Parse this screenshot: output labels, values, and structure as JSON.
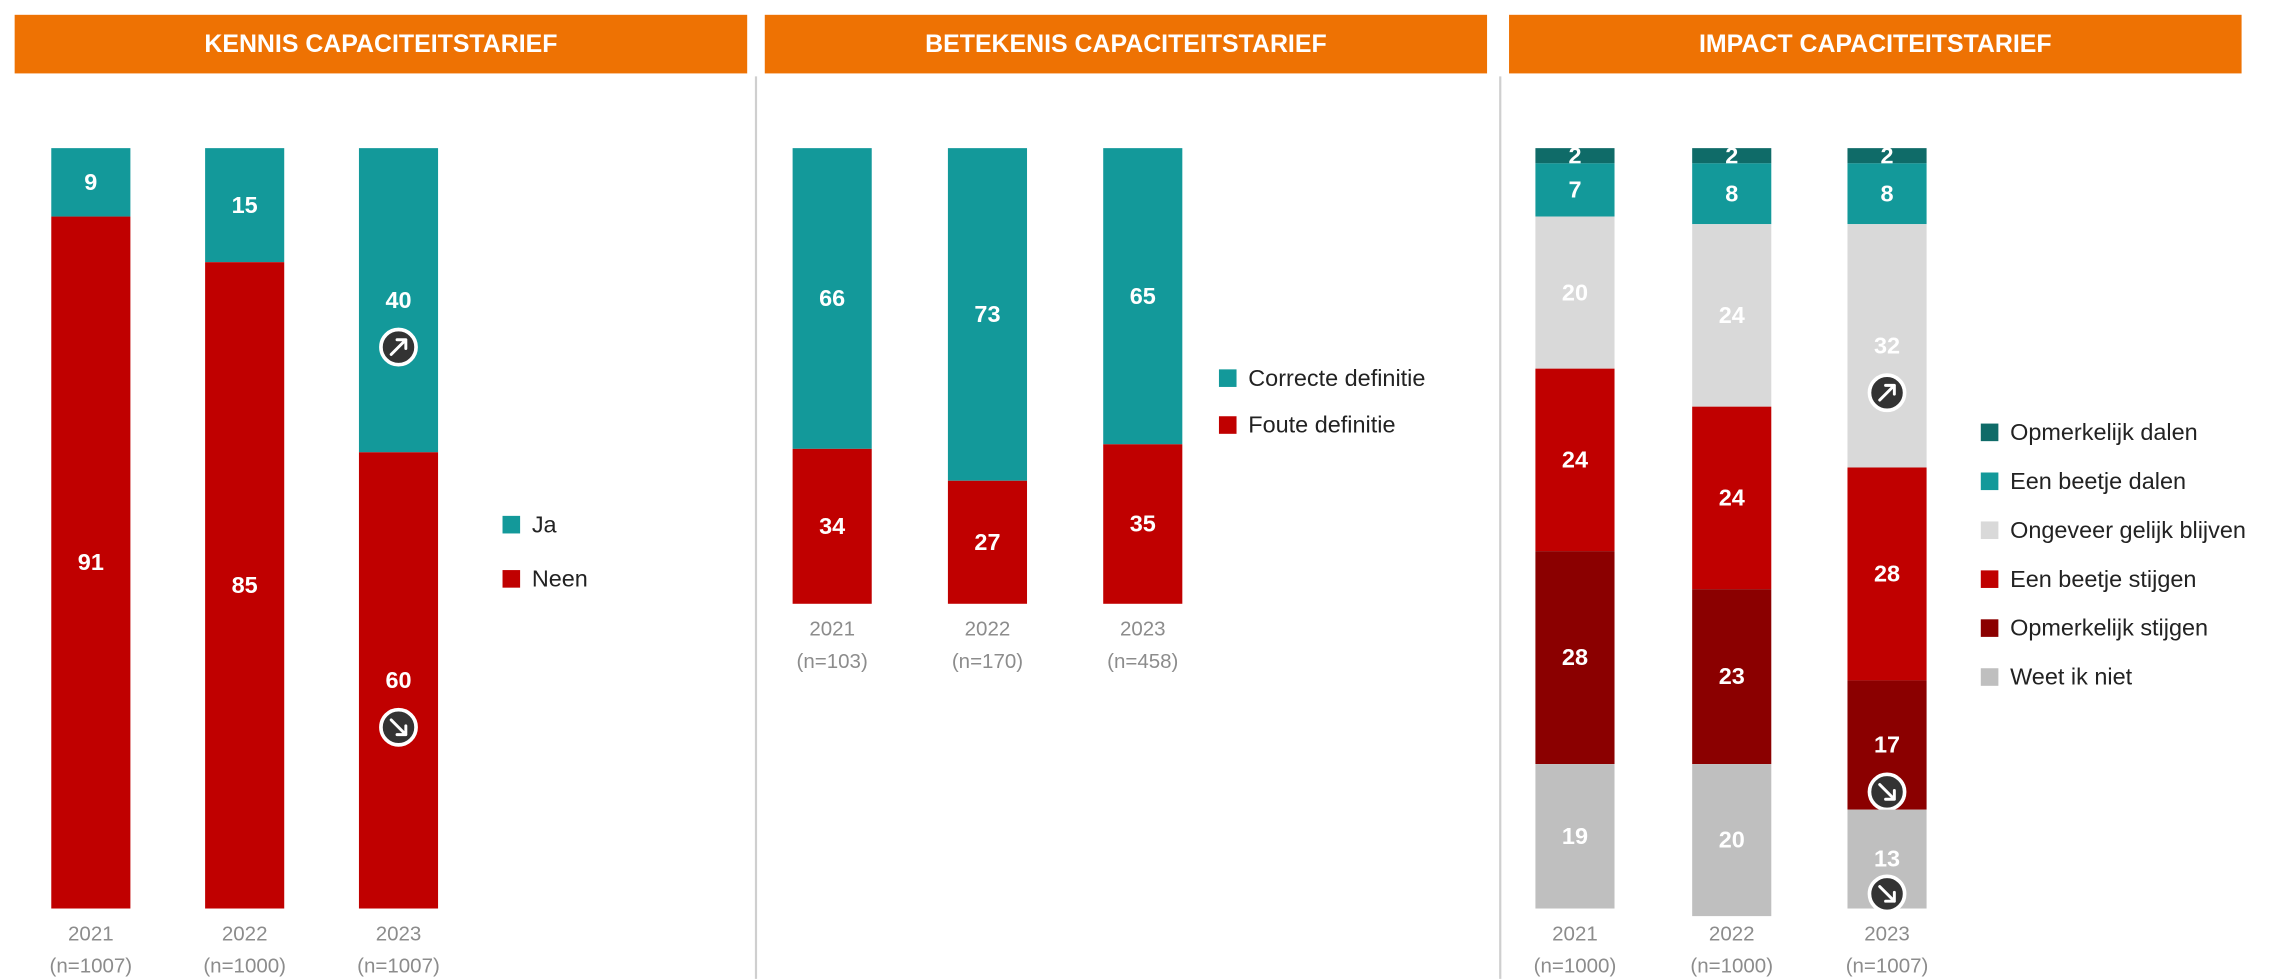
{
  "chart_data": [
    {
      "type": "stacked_bar",
      "title": "KENNIS CAPACITEITSTARIEF",
      "categories": [
        "2021",
        "2022",
        "2023"
      ],
      "n_labels": [
        "(n=1007)",
        "(n=1000)",
        "(n=1007)"
      ],
      "ylim": [
        0,
        100
      ],
      "legend": "right",
      "series": [
        {
          "name": "Ja",
          "color": "#13999a",
          "values": [
            9,
            15,
            40
          ],
          "trend": [
            null,
            null,
            "up"
          ]
        },
        {
          "name": "Neen",
          "color": "#c00000",
          "values": [
            91,
            85,
            60
          ],
          "trend": [
            null,
            null,
            "down"
          ]
        }
      ]
    },
    {
      "type": "stacked_bar",
      "title": "BETEKENIS CAPACITEITSTARIEF",
      "categories": [
        "2021",
        "2022",
        "2023"
      ],
      "n_labels": [
        "(n=103)",
        "(n=170)",
        "(n=458)"
      ],
      "ylim": [
        0,
        100
      ],
      "legend": "right",
      "series": [
        {
          "name": "Correcte definitie",
          "color": "#13999a",
          "values": [
            66,
            73,
            65
          ]
        },
        {
          "name": "Foute definitie",
          "color": "#c00000",
          "values": [
            34,
            27,
            35
          ]
        }
      ]
    },
    {
      "type": "stacked_bar",
      "title": "IMPACT CAPACITEITSTARIEF",
      "categories": [
        "2021",
        "2022",
        "2023"
      ],
      "n_labels": [
        "(n=1000)",
        "(n=1000)",
        "(n=1007)"
      ],
      "ylim": [
        0,
        100
      ],
      "legend": "right",
      "series": [
        {
          "name": "Opmerkelijk dalen",
          "color": "#0f6b68",
          "values": [
            2,
            2,
            2
          ]
        },
        {
          "name": "Een beetje dalen",
          "color": "#13999a",
          "values": [
            7,
            8,
            8
          ]
        },
        {
          "name": "Ongeveer gelijk blijven",
          "color": "#d9d9d9",
          "values": [
            20,
            24,
            32
          ],
          "trend": [
            null,
            null,
            "up"
          ]
        },
        {
          "name": "Een beetje stijgen",
          "color": "#c00000",
          "values": [
            24,
            24,
            28
          ]
        },
        {
          "name": "Opmerkelijk stijgen",
          "color": "#8b0000",
          "values": [
            28,
            23,
            17
          ],
          "trend": [
            null,
            null,
            "down"
          ]
        },
        {
          "name": "Weet ik niet",
          "color": "#bfbfbf",
          "values": [
            19,
            20,
            13
          ],
          "trend": [
            null,
            null,
            "down"
          ]
        }
      ]
    }
  ]
}
